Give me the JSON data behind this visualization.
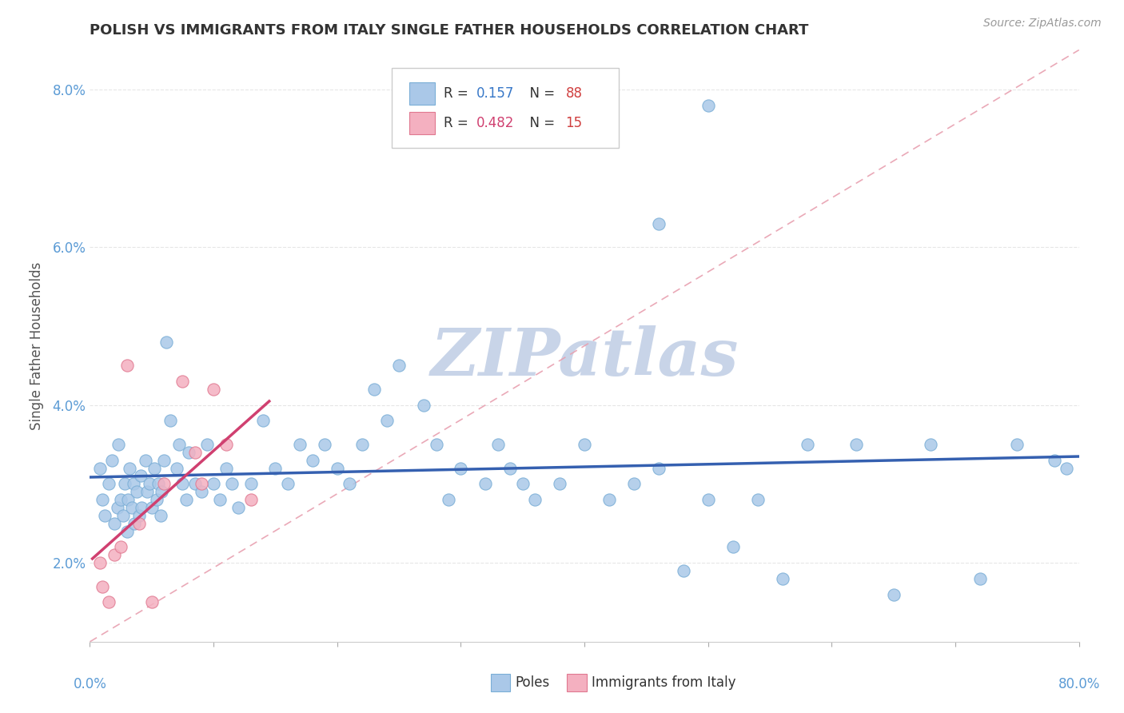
{
  "title": "POLISH VS IMMIGRANTS FROM ITALY SINGLE FATHER HOUSEHOLDS CORRELATION CHART",
  "source_text": "Source: ZipAtlas.com",
  "ylabel": "Single Father Households",
  "x_min": 0.0,
  "x_max": 80.0,
  "y_min": 1.0,
  "y_max": 8.5,
  "y_ticks": [
    2.0,
    4.0,
    6.0,
    8.0
  ],
  "x_ticks": [
    0,
    10,
    20,
    30,
    40,
    50,
    60,
    70,
    80
  ],
  "poles_color": "#aac8e8",
  "poles_edge_color": "#7aaed6",
  "italy_color": "#f4b0c0",
  "italy_edge_color": "#e07890",
  "poles_trend_color": "#3560b0",
  "italy_trend_color": "#d04070",
  "diagonal_color": "#e8a0b0",
  "R_poles": 0.157,
  "N_poles": 88,
  "R_italy": 0.482,
  "N_italy": 15,
  "poles_x": [
    0.8,
    1.0,
    1.2,
    1.5,
    1.8,
    2.0,
    2.2,
    2.3,
    2.5,
    2.7,
    2.8,
    3.0,
    3.1,
    3.2,
    3.4,
    3.5,
    3.6,
    3.8,
    4.0,
    4.1,
    4.2,
    4.5,
    4.6,
    4.8,
    5.0,
    5.2,
    5.4,
    5.5,
    5.7,
    5.8,
    6.0,
    6.2,
    6.5,
    7.0,
    7.2,
    7.5,
    7.8,
    8.0,
    8.5,
    9.0,
    9.5,
    10.0,
    10.5,
    11.0,
    11.5,
    12.0,
    13.0,
    14.0,
    15.0,
    16.0,
    17.0,
    18.0,
    19.0,
    20.0,
    21.0,
    22.0,
    23.0,
    24.0,
    25.0,
    27.0,
    28.0,
    29.0,
    30.0,
    32.0,
    33.0,
    34.0,
    35.0,
    36.0,
    38.0,
    40.0,
    42.0,
    44.0,
    46.0,
    48.0,
    50.0,
    52.0,
    54.0,
    56.0,
    58.0,
    62.0,
    65.0,
    68.0,
    72.0,
    75.0,
    78.0,
    79.0,
    46.0,
    50.0
  ],
  "poles_y": [
    3.2,
    2.8,
    2.6,
    3.0,
    3.3,
    2.5,
    2.7,
    3.5,
    2.8,
    2.6,
    3.0,
    2.4,
    2.8,
    3.2,
    2.7,
    3.0,
    2.5,
    2.9,
    2.6,
    3.1,
    2.7,
    3.3,
    2.9,
    3.0,
    2.7,
    3.2,
    2.8,
    3.0,
    2.6,
    2.9,
    3.3,
    4.8,
    3.8,
    3.2,
    3.5,
    3.0,
    2.8,
    3.4,
    3.0,
    2.9,
    3.5,
    3.0,
    2.8,
    3.2,
    3.0,
    2.7,
    3.0,
    3.8,
    3.2,
    3.0,
    3.5,
    3.3,
    3.5,
    3.2,
    3.0,
    3.5,
    4.2,
    3.8,
    4.5,
    4.0,
    3.5,
    2.8,
    3.2,
    3.0,
    3.5,
    3.2,
    3.0,
    2.8,
    3.0,
    3.5,
    2.8,
    3.0,
    3.2,
    1.9,
    2.8,
    2.2,
    2.8,
    1.8,
    3.5,
    3.5,
    1.6,
    3.5,
    1.8,
    3.5,
    3.3,
    3.2,
    6.3,
    7.8
  ],
  "italy_x": [
    0.8,
    1.0,
    1.5,
    2.0,
    2.5,
    3.0,
    4.0,
    5.0,
    6.0,
    7.5,
    8.5,
    9.0,
    10.0,
    11.0,
    13.0
  ],
  "italy_y": [
    2.0,
    1.7,
    1.5,
    2.1,
    2.2,
    4.5,
    2.5,
    1.5,
    3.0,
    4.3,
    3.4,
    3.0,
    4.2,
    3.5,
    2.8
  ],
  "watermark_text": "ZIPatlas",
  "watermark_color": "#c8d4e8",
  "background_color": "#ffffff",
  "grid_color": "#e0e0e0",
  "grid_style": "--"
}
